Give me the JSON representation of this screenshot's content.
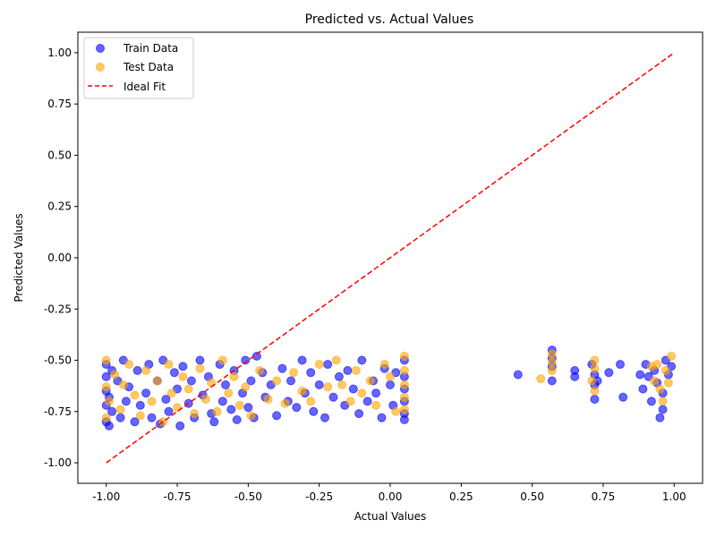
{
  "chart_data": {
    "type": "scatter",
    "title": "Predicted vs. Actual Values",
    "xlabel": "Actual Values",
    "ylabel": "Predicted Values",
    "xlim": [
      -1.1,
      1.1
    ],
    "ylim": [
      -1.1,
      1.1
    ],
    "xticks": [
      "-1.00",
      "-0.75",
      "-0.50",
      "-0.25",
      "0.00",
      "0.25",
      "0.50",
      "0.75",
      "1.00"
    ],
    "xtick_values": [
      -1.0,
      -0.75,
      -0.5,
      -0.25,
      0.0,
      0.25,
      0.5,
      0.75,
      1.0
    ],
    "yticks": [
      "-1.00",
      "-0.75",
      "-0.50",
      "-0.25",
      "0.00",
      "0.25",
      "0.50",
      "0.75",
      "1.00"
    ],
    "ytick_values": [
      -1.0,
      -0.75,
      -0.5,
      -0.25,
      0.0,
      0.25,
      0.5,
      0.75,
      1.0
    ],
    "grid": false,
    "legend_position": "top-left",
    "series": [
      {
        "name": "Train Data",
        "color": "#0000ff",
        "marker": "circle",
        "alpha": 0.6,
        "points": [
          [
            -1.0,
            -0.8
          ],
          [
            -1.0,
            -0.72
          ],
          [
            -1.0,
            -0.65
          ],
          [
            -1.0,
            -0.58
          ],
          [
            -1.0,
            -0.52
          ],
          [
            -0.99,
            -0.82
          ],
          [
            -0.99,
            -0.68
          ],
          [
            -0.98,
            -0.55
          ],
          [
            -0.98,
            -0.75
          ],
          [
            -0.96,
            -0.6
          ],
          [
            -0.95,
            -0.78
          ],
          [
            -0.94,
            -0.5
          ],
          [
            -0.93,
            -0.7
          ],
          [
            -0.92,
            -0.63
          ],
          [
            -0.9,
            -0.8
          ],
          [
            -0.89,
            -0.55
          ],
          [
            -0.88,
            -0.72
          ],
          [
            -0.86,
            -0.66
          ],
          [
            -0.85,
            -0.52
          ],
          [
            -0.84,
            -0.78
          ],
          [
            -0.82,
            -0.6
          ],
          [
            -0.81,
            -0.81
          ],
          [
            -0.8,
            -0.5
          ],
          [
            -0.79,
            -0.69
          ],
          [
            -0.78,
            -0.75
          ],
          [
            -0.76,
            -0.56
          ],
          [
            -0.75,
            -0.64
          ],
          [
            -0.74,
            -0.82
          ],
          [
            -0.73,
            -0.53
          ],
          [
            -0.71,
            -0.71
          ],
          [
            -0.7,
            -0.6
          ],
          [
            -0.69,
            -0.78
          ],
          [
            -0.67,
            -0.5
          ],
          [
            -0.66,
            -0.67
          ],
          [
            -0.64,
            -0.58
          ],
          [
            -0.63,
            -0.76
          ],
          [
            -0.62,
            -0.8
          ],
          [
            -0.6,
            -0.52
          ],
          [
            -0.59,
            -0.7
          ],
          [
            -0.58,
            -0.62
          ],
          [
            -0.56,
            -0.74
          ],
          [
            -0.55,
            -0.55
          ],
          [
            -0.54,
            -0.79
          ],
          [
            -0.52,
            -0.66
          ],
          [
            -0.51,
            -0.5
          ],
          [
            -0.5,
            -0.73
          ],
          [
            -0.49,
            -0.6
          ],
          [
            -0.48,
            -0.78
          ],
          [
            -0.47,
            -0.48
          ],
          [
            -0.45,
            -0.56
          ],
          [
            -0.44,
            -0.68
          ],
          [
            -0.42,
            -0.62
          ],
          [
            -0.4,
            -0.77
          ],
          [
            -0.38,
            -0.54
          ],
          [
            -0.36,
            -0.7
          ],
          [
            -0.35,
            -0.6
          ],
          [
            -0.33,
            -0.73
          ],
          [
            -0.31,
            -0.5
          ],
          [
            -0.3,
            -0.66
          ],
          [
            -0.28,
            -0.56
          ],
          [
            -0.27,
            -0.75
          ],
          [
            -0.25,
            -0.62
          ],
          [
            -0.23,
            -0.78
          ],
          [
            -0.22,
            -0.52
          ],
          [
            -0.2,
            -0.68
          ],
          [
            -0.18,
            -0.58
          ],
          [
            -0.16,
            -0.72
          ],
          [
            -0.15,
            -0.55
          ],
          [
            -0.13,
            -0.64
          ],
          [
            -0.11,
            -0.76
          ],
          [
            -0.1,
            -0.5
          ],
          [
            -0.08,
            -0.7
          ],
          [
            -0.06,
            -0.6
          ],
          [
            -0.05,
            -0.66
          ],
          [
            -0.03,
            -0.78
          ],
          [
            -0.02,
            -0.54
          ],
          [
            0.0,
            -0.62
          ],
          [
            0.01,
            -0.72
          ],
          [
            0.02,
            -0.56
          ],
          [
            0.05,
            -0.5
          ],
          [
            0.05,
            -0.58
          ],
          [
            0.05,
            -0.64
          ],
          [
            0.05,
            -0.7
          ],
          [
            0.05,
            -0.76
          ],
          [
            0.05,
            -0.79
          ],
          [
            0.45,
            -0.57
          ],
          [
            0.57,
            -0.45
          ],
          [
            0.57,
            -0.49
          ],
          [
            0.57,
            -0.53
          ],
          [
            0.57,
            -0.6
          ],
          [
            0.65,
            -0.55
          ],
          [
            0.65,
            -0.58
          ],
          [
            0.71,
            -0.52
          ],
          [
            0.72,
            -0.57
          ],
          [
            0.72,
            -0.62
          ],
          [
            0.72,
            -0.69
          ],
          [
            0.73,
            -0.6
          ],
          [
            0.77,
            -0.56
          ],
          [
            0.81,
            -0.52
          ],
          [
            0.82,
            -0.68
          ],
          [
            0.88,
            -0.57
          ],
          [
            0.89,
            -0.64
          ],
          [
            0.9,
            -0.52
          ],
          [
            0.91,
            -0.58
          ],
          [
            0.92,
            -0.7
          ],
          [
            0.93,
            -0.55
          ],
          [
            0.94,
            -0.61
          ],
          [
            0.95,
            -0.78
          ],
          [
            0.96,
            -0.74
          ],
          [
            0.96,
            -0.66
          ],
          [
            0.97,
            -0.5
          ],
          [
            0.98,
            -0.57
          ],
          [
            0.99,
            -0.53
          ]
        ]
      },
      {
        "name": "Test Data",
        "color": "#ffa500",
        "marker": "circle",
        "alpha": 0.6,
        "points": [
          [
            -1.0,
            -0.78
          ],
          [
            -1.0,
            -0.63
          ],
          [
            -1.0,
            -0.5
          ],
          [
            -0.99,
            -0.7
          ],
          [
            -0.97,
            -0.57
          ],
          [
            -0.95,
            -0.74
          ],
          [
            -0.94,
            -0.62
          ],
          [
            -0.92,
            -0.52
          ],
          [
            -0.9,
            -0.67
          ],
          [
            -0.88,
            -0.77
          ],
          [
            -0.86,
            -0.55
          ],
          [
            -0.84,
            -0.7
          ],
          [
            -0.82,
            -0.6
          ],
          [
            -0.8,
            -0.8
          ],
          [
            -0.78,
            -0.52
          ],
          [
            -0.77,
            -0.66
          ],
          [
            -0.75,
            -0.73
          ],
          [
            -0.73,
            -0.58
          ],
          [
            -0.71,
            -0.64
          ],
          [
            -0.69,
            -0.76
          ],
          [
            -0.67,
            -0.54
          ],
          [
            -0.65,
            -0.69
          ],
          [
            -0.63,
            -0.61
          ],
          [
            -0.61,
            -0.75
          ],
          [
            -0.59,
            -0.5
          ],
          [
            -0.57,
            -0.66
          ],
          [
            -0.55,
            -0.58
          ],
          [
            -0.53,
            -0.72
          ],
          [
            -0.51,
            -0.63
          ],
          [
            -0.49,
            -0.77
          ],
          [
            -0.46,
            -0.55
          ],
          [
            -0.43,
            -0.69
          ],
          [
            -0.4,
            -0.6
          ],
          [
            -0.37,
            -0.71
          ],
          [
            -0.34,
            -0.56
          ],
          [
            -0.31,
            -0.65
          ],
          [
            -0.28,
            -0.7
          ],
          [
            -0.25,
            -0.52
          ],
          [
            -0.22,
            -0.63
          ],
          [
            -0.19,
            -0.5
          ],
          [
            -0.17,
            -0.62
          ],
          [
            -0.14,
            -0.7
          ],
          [
            -0.12,
            -0.55
          ],
          [
            -0.1,
            -0.66
          ],
          [
            -0.07,
            -0.6
          ],
          [
            -0.05,
            -0.72
          ],
          [
            -0.02,
            -0.52
          ],
          [
            0.0,
            -0.58
          ],
          [
            0.02,
            -0.75
          ],
          [
            0.05,
            -0.48
          ],
          [
            0.05,
            -0.55
          ],
          [
            0.05,
            -0.62
          ],
          [
            0.05,
            -0.68
          ],
          [
            0.05,
            -0.74
          ],
          [
            0.53,
            -0.59
          ],
          [
            0.57,
            -0.47
          ],
          [
            0.57,
            -0.51
          ],
          [
            0.57,
            -0.55
          ],
          [
            0.71,
            -0.6
          ],
          [
            0.72,
            -0.5
          ],
          [
            0.72,
            -0.54
          ],
          [
            0.72,
            -0.65
          ],
          [
            0.92,
            -0.53
          ],
          [
            0.93,
            -0.6
          ],
          [
            0.94,
            -0.52
          ],
          [
            0.95,
            -0.64
          ],
          [
            0.96,
            -0.7
          ],
          [
            0.97,
            -0.55
          ],
          [
            0.98,
            -0.61
          ],
          [
            0.99,
            -0.48
          ]
        ]
      }
    ],
    "reference_line": {
      "name": "Ideal Fit",
      "color": "#ff0000",
      "style": "dashed",
      "x": [
        -1.0,
        1.0
      ],
      "y": [
        -1.0,
        1.0
      ]
    }
  }
}
